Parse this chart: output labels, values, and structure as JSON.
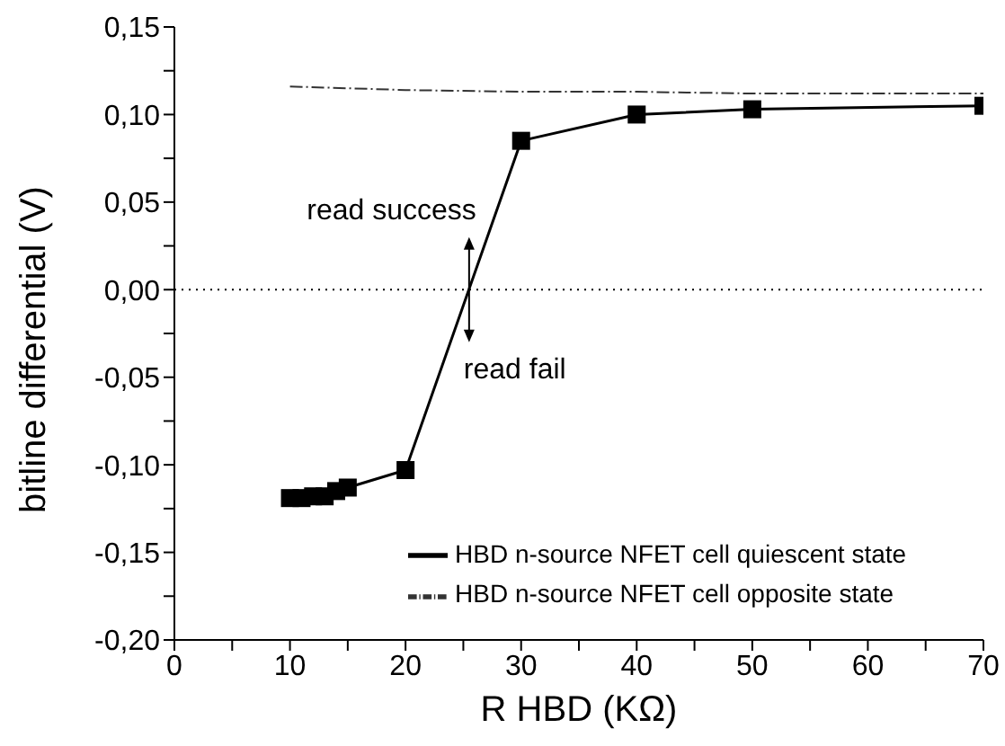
{
  "chart_data": {
    "type": "line",
    "xlabel": "R HBD (KΩ)",
    "ylabel": "bitline differential (V)",
    "xlim": [
      0,
      70
    ],
    "xticks": [
      0,
      {
        "value": 5,
        "label": null
      },
      10,
      {
        "value": 15,
        "label": null
      },
      20,
      {
        "value": 25,
        "label": null
      },
      30,
      {
        "value": 35,
        "label": null
      },
      40,
      {
        "value": 45,
        "label": null
      },
      50,
      {
        "value": 55,
        "label": null
      },
      60,
      {
        "value": 65,
        "label": null
      },
      70
    ],
    "ylim": [
      -0.2,
      0.15
    ],
    "yticks": [
      {
        "value": -0.2,
        "label": "-0,20"
      },
      {
        "value": -0.175,
        "label": null
      },
      {
        "value": -0.15,
        "label": "-0,15"
      },
      {
        "value": -0.125,
        "label": null
      },
      {
        "value": -0.1,
        "label": "-0,10"
      },
      {
        "value": -0.075,
        "label": null
      },
      {
        "value": -0.05,
        "label": "-0,05"
      },
      {
        "value": -0.025,
        "label": null
      },
      {
        "value": 0,
        "label": "0,00"
      },
      {
        "value": 0.025,
        "label": null
      },
      {
        "value": 0.05,
        "label": "0,05"
      },
      {
        "value": 0.075,
        "label": null
      },
      {
        "value": 0.1,
        "label": "0,10"
      },
      {
        "value": 0.125,
        "label": null
      },
      {
        "value": 0.15,
        "label": "0,15"
      }
    ],
    "series": [
      {
        "name": "HBD n-source NFET cell quiescent state",
        "color": "#000000",
        "marker": "square",
        "line_style": "solid",
        "x": [
          10,
          11,
          12,
          13,
          14,
          15,
          20,
          30,
          40,
          50,
          70
        ],
        "values": [
          -0.119,
          -0.119,
          -0.118,
          -0.118,
          -0.115,
          -0.113,
          -0.103,
          0.085,
          0.1,
          0.103,
          0.105
        ]
      },
      {
        "name": "HBD n-source NFET cell opposite state",
        "color": "#333333",
        "marker": "none",
        "line_style": "dashed",
        "x": [
          10,
          20,
          30,
          40,
          50,
          60,
          70
        ],
        "values": [
          0.116,
          0.114,
          0.113,
          0.113,
          0.112,
          0.112,
          0.112
        ]
      }
    ],
    "ref_lines": [
      {
        "axis": "y",
        "value": 0,
        "color": "#000000",
        "line_style": "dotted"
      }
    ],
    "annotations": [
      "read success",
      "read fail"
    ],
    "legend": "bottom right",
    "grid": false
  }
}
